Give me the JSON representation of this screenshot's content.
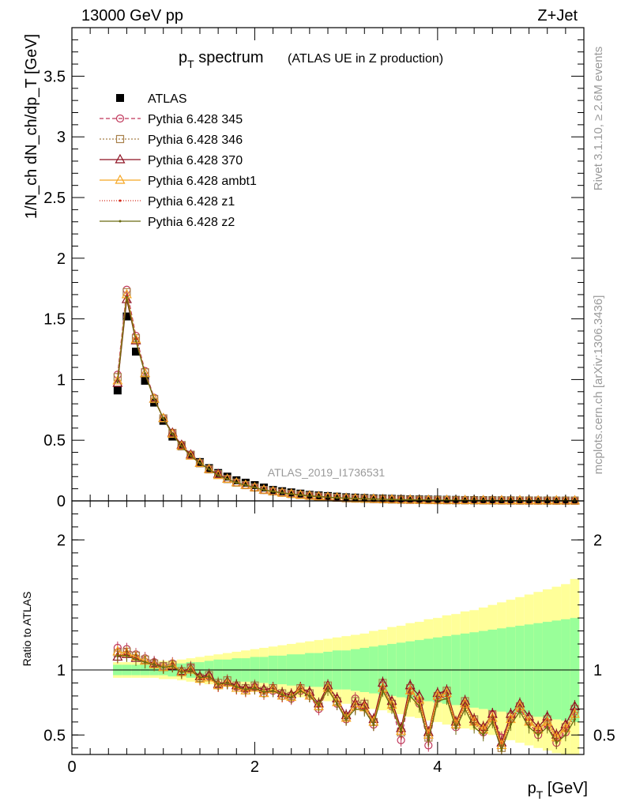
{
  "header": {
    "energy_label": "13000 GeV pp",
    "process_label": "Z+Jet"
  },
  "side_labels": {
    "rivet": "Rivet 3.1.10, ≥ 2.6M events",
    "mcplots": "mcplots.cern.ch [arXiv:1306.3436]"
  },
  "watermark": "ATLAS_2019_I1736531",
  "chart_data": [
    {
      "type": "line",
      "title": "p_T spectrum",
      "title_parts": {
        "main": "p",
        "sub": "T",
        "rest": " spectrum",
        "suffix": "(ATLAS UE in Z production)"
      },
      "ylabel": "1/N_ch dN_ch/dp_T [GeV]",
      "ylim": [
        0,
        3.9
      ],
      "yticks": [
        "0",
        "0.5",
        "1",
        "1.5",
        "2",
        "2.5",
        "3",
        "3.5"
      ],
      "legend_position": "top-left",
      "x": [
        0.5,
        0.6,
        0.7,
        0.8,
        0.9,
        1.0,
        1.1,
        1.2,
        1.3,
        1.4,
        1.5,
        1.6,
        1.7,
        1.8,
        1.9,
        2.0,
        2.1,
        2.2,
        2.3,
        2.4,
        2.5,
        2.6,
        2.7,
        2.8,
        2.9,
        3.0,
        3.1,
        3.2,
        3.3,
        3.4,
        3.5,
        3.6,
        3.7,
        3.8,
        3.9,
        4.0,
        4.1,
        4.2,
        4.3,
        4.4,
        4.5,
        4.6,
        4.7,
        4.8,
        4.9,
        5.0,
        5.1,
        5.2,
        5.3,
        5.4,
        5.5
      ],
      "series": [
        {
          "name": "ATLAS",
          "color": "#000000",
          "marker": "square",
          "values": [
            0.91,
            1.52,
            1.23,
            0.99,
            0.81,
            0.66,
            0.53,
            0.45,
            0.38,
            0.32,
            0.27,
            0.23,
            0.2,
            0.17,
            0.15,
            0.13,
            0.11,
            0.09,
            0.08,
            0.07,
            0.06,
            0.05,
            0.045,
            0.04,
            0.035,
            0.03,
            0.027,
            0.024,
            0.021,
            0.019,
            0.017,
            0.015,
            0.013,
            0.012,
            0.011,
            0.01,
            0.009,
            0.008,
            0.007,
            0.0065,
            0.006,
            0.0055,
            0.005,
            0.0045,
            0.004,
            0.0037,
            0.0034,
            0.0031,
            0.0028,
            0.0026,
            0.0024
          ]
        },
        {
          "name": "Pythia 6.428 345",
          "color": "#c0365a",
          "marker": "circle",
          "dash": "5,3",
          "values": [
            1.04,
            1.74,
            1.36,
            1.07,
            0.85,
            0.68,
            0.56,
            0.46,
            0.38,
            0.31,
            0.26,
            0.22,
            0.18,
            0.15,
            0.13,
            0.11,
            0.09,
            0.078,
            0.067,
            0.057,
            0.049,
            0.042,
            0.036,
            0.031,
            0.026,
            0.022,
            0.019,
            0.017,
            0.015,
            0.013,
            0.011,
            0.0095,
            0.0085,
            0.0075,
            0.0065,
            0.0058,
            0.0052,
            0.0046,
            0.0041,
            0.0037,
            0.0033,
            0.003,
            0.0027,
            0.0024,
            0.0022,
            0.002,
            0.0018,
            0.0016,
            0.0015,
            0.0013,
            0.0012
          ]
        },
        {
          "name": "Pythia 6.428 346",
          "color": "#a8804a",
          "marker": "square-open",
          "dash": "2,2",
          "values": [
            1.02,
            1.72,
            1.34,
            1.06,
            0.84,
            0.68,
            0.56,
            0.46,
            0.38,
            0.31,
            0.26,
            0.22,
            0.18,
            0.15,
            0.13,
            0.11,
            0.09,
            0.078,
            0.067,
            0.057,
            0.049,
            0.042,
            0.036,
            0.031,
            0.026,
            0.022,
            0.019,
            0.017,
            0.015,
            0.013,
            0.011,
            0.0095,
            0.0085,
            0.0075,
            0.0065,
            0.0058,
            0.0052,
            0.0046,
            0.0041,
            0.0037,
            0.0033,
            0.003,
            0.0027,
            0.0024,
            0.0022,
            0.002,
            0.0018,
            0.0016,
            0.0015,
            0.0013,
            0.0012
          ]
        },
        {
          "name": "Pythia 6.428 370",
          "color": "#8e1021",
          "marker": "triangle-open",
          "dash": "",
          "values": [
            0.97,
            1.66,
            1.32,
            1.05,
            0.84,
            0.68,
            0.56,
            0.46,
            0.38,
            0.31,
            0.26,
            0.22,
            0.18,
            0.15,
            0.13,
            0.11,
            0.09,
            0.078,
            0.067,
            0.057,
            0.049,
            0.042,
            0.036,
            0.031,
            0.026,
            0.022,
            0.019,
            0.017,
            0.015,
            0.013,
            0.011,
            0.0095,
            0.0085,
            0.0075,
            0.0065,
            0.0058,
            0.0052,
            0.0046,
            0.0041,
            0.0037,
            0.0033,
            0.003,
            0.0027,
            0.0024,
            0.0022,
            0.002,
            0.0018,
            0.0016,
            0.0015,
            0.0013,
            0.0012
          ]
        },
        {
          "name": "Pythia 6.428 ambt1",
          "color": "#f5a623",
          "marker": "triangle-open",
          "dash": "",
          "values": [
            0.99,
            1.7,
            1.33,
            1.05,
            0.84,
            0.68,
            0.55,
            0.45,
            0.37,
            0.31,
            0.26,
            0.21,
            0.18,
            0.15,
            0.13,
            0.11,
            0.09,
            0.077,
            0.066,
            0.056,
            0.048,
            0.041,
            0.035,
            0.03,
            0.026,
            0.022,
            0.019,
            0.017,
            0.015,
            0.013,
            0.011,
            0.0095,
            0.0085,
            0.0075,
            0.0065,
            0.0058,
            0.0052,
            0.0046,
            0.0041,
            0.0037,
            0.0033,
            0.003,
            0.0027,
            0.0024,
            0.0022,
            0.002,
            0.0018,
            0.0016,
            0.0015,
            0.0013,
            0.0012
          ]
        },
        {
          "name": "Pythia 6.428 z1",
          "color": "#d42a1a",
          "marker": "dot",
          "dash": "1,2",
          "values": [
            0.98,
            1.69,
            1.33,
            1.05,
            0.84,
            0.68,
            0.55,
            0.45,
            0.37,
            0.31,
            0.26,
            0.21,
            0.18,
            0.15,
            0.13,
            0.11,
            0.09,
            0.077,
            0.066,
            0.056,
            0.048,
            0.041,
            0.035,
            0.03,
            0.026,
            0.022,
            0.019,
            0.017,
            0.015,
            0.013,
            0.011,
            0.0095,
            0.0085,
            0.0075,
            0.0065,
            0.0058,
            0.0052,
            0.0046,
            0.0041,
            0.0037,
            0.0033,
            0.003,
            0.0027,
            0.0024,
            0.0022,
            0.002,
            0.0018,
            0.0016,
            0.0015,
            0.0013,
            0.0012
          ]
        },
        {
          "name": "Pythia 6.428 z2",
          "color": "#6b6b10",
          "marker": "dot",
          "dash": "",
          "values": [
            0.98,
            1.68,
            1.32,
            1.05,
            0.84,
            0.68,
            0.55,
            0.45,
            0.37,
            0.31,
            0.26,
            0.21,
            0.18,
            0.15,
            0.13,
            0.11,
            0.09,
            0.077,
            0.066,
            0.056,
            0.048,
            0.041,
            0.035,
            0.03,
            0.026,
            0.022,
            0.019,
            0.017,
            0.015,
            0.013,
            0.011,
            0.0095,
            0.0085,
            0.0075,
            0.0065,
            0.0058,
            0.0052,
            0.0046,
            0.0041,
            0.0037,
            0.0033,
            0.003,
            0.0027,
            0.0024,
            0.0022,
            0.002,
            0.0018,
            0.0016,
            0.0015,
            0.0013,
            0.0012
          ]
        }
      ]
    },
    {
      "type": "line",
      "ylabel": "Ratio to ATLAS",
      "xlabel": "p_T [GeV]",
      "xlabel_parts": {
        "main": "p",
        "sub": "T",
        "rest": " [GeV]"
      },
      "xlim": [
        0,
        5.6
      ],
      "ylim": [
        0.35,
        2.3
      ],
      "xticks": [
        "0",
        "2",
        "4"
      ],
      "yticks": [
        "0.5",
        "1",
        "2"
      ],
      "x": [
        0.5,
        0.6,
        0.7,
        0.8,
        0.9,
        1.0,
        1.1,
        1.2,
        1.3,
        1.4,
        1.5,
        1.6,
        1.7,
        1.8,
        1.9,
        2.0,
        2.1,
        2.2,
        2.3,
        2.4,
        2.5,
        2.6,
        2.7,
        2.8,
        2.9,
        3.0,
        3.1,
        3.2,
        3.3,
        3.4,
        3.5,
        3.6,
        3.7,
        3.8,
        3.9,
        4.0,
        4.1,
        4.2,
        4.3,
        4.4,
        4.5,
        4.6,
        4.7,
        4.8,
        4.9,
        5.0,
        5.1,
        5.2,
        5.3,
        5.4,
        5.5
      ],
      "bands": {
        "stat_color": "#99ff99",
        "total_color": "#ffff99",
        "stat_half_width": [
          0.04,
          0.04,
          0.04,
          0.04,
          0.04,
          0.04,
          0.05,
          0.05,
          0.06,
          0.06,
          0.07,
          0.08,
          0.08,
          0.09,
          0.09,
          0.1,
          0.1,
          0.11,
          0.11,
          0.12,
          0.12,
          0.13,
          0.13,
          0.14,
          0.15,
          0.15,
          0.16,
          0.17,
          0.18,
          0.19,
          0.2,
          0.21,
          0.22,
          0.23,
          0.24,
          0.25,
          0.26,
          0.27,
          0.28,
          0.29,
          0.3,
          0.31,
          0.32,
          0.33,
          0.34,
          0.35,
          0.36,
          0.37,
          0.38,
          0.39,
          0.4
        ],
        "total_half_width": [
          0.06,
          0.06,
          0.06,
          0.06,
          0.06,
          0.07,
          0.07,
          0.08,
          0.09,
          0.1,
          0.11,
          0.12,
          0.13,
          0.14,
          0.15,
          0.16,
          0.17,
          0.18,
          0.19,
          0.2,
          0.21,
          0.22,
          0.23,
          0.24,
          0.25,
          0.26,
          0.27,
          0.28,
          0.3,
          0.31,
          0.33,
          0.34,
          0.36,
          0.37,
          0.39,
          0.4,
          0.42,
          0.43,
          0.45,
          0.46,
          0.48,
          0.5,
          0.52,
          0.54,
          0.56,
          0.58,
          0.6,
          0.62,
          0.64,
          0.66,
          0.7
        ]
      },
      "series": [
        {
          "name": "Pythia 6.428 345",
          "values": [
            1.17,
            1.16,
            1.12,
            1.09,
            1.06,
            1.03,
            1.05,
            0.98,
            1.02,
            0.93,
            0.95,
            0.88,
            0.9,
            0.87,
            0.85,
            0.87,
            0.82,
            0.84,
            0.8,
            0.78,
            0.84,
            0.8,
            0.7,
            0.86,
            0.74,
            0.62,
            0.78,
            0.72,
            0.58,
            0.88,
            0.72,
            0.46,
            0.84,
            0.74,
            0.42,
            0.78,
            0.8,
            0.56,
            0.74,
            0.6,
            0.52,
            0.66,
            0.48,
            0.62,
            0.7,
            0.6,
            0.5,
            0.58,
            0.44,
            0.52,
            0.68
          ]
        },
        {
          "name": "Pythia 6.428 346",
          "values": [
            1.13,
            1.14,
            1.11,
            1.08,
            1.05,
            1.03,
            1.04,
            0.99,
            1.02,
            0.94,
            0.96,
            0.9,
            0.92,
            0.88,
            0.86,
            0.88,
            0.84,
            0.86,
            0.82,
            0.8,
            0.86,
            0.82,
            0.72,
            0.88,
            0.76,
            0.64,
            0.76,
            0.74,
            0.6,
            0.9,
            0.74,
            0.52,
            0.86,
            0.76,
            0.48,
            0.8,
            0.84,
            0.58,
            0.76,
            0.62,
            0.54,
            0.66,
            0.4,
            0.64,
            0.72,
            0.62,
            0.54,
            0.62,
            0.48,
            0.56,
            0.7
          ]
        },
        {
          "name": "Pythia 6.428 370",
          "values": [
            1.1,
            1.12,
            1.09,
            1.07,
            1.05,
            1.02,
            1.03,
            0.99,
            1.01,
            0.95,
            0.96,
            0.89,
            0.91,
            0.88,
            0.86,
            0.87,
            0.85,
            0.86,
            0.82,
            0.81,
            0.86,
            0.83,
            0.74,
            0.88,
            0.78,
            0.65,
            0.74,
            0.73,
            0.62,
            0.9,
            0.76,
            0.55,
            0.88,
            0.8,
            0.52,
            0.82,
            0.84,
            0.6,
            0.76,
            0.62,
            0.56,
            0.66,
            0.44,
            0.66,
            0.74,
            0.64,
            0.56,
            0.64,
            0.5,
            0.58,
            0.72
          ]
        },
        {
          "name": "Pythia 6.428 ambt1",
          "values": [
            1.14,
            1.13,
            1.1,
            1.07,
            1.04,
            1.02,
            1.04,
            0.98,
            1.0,
            0.93,
            0.94,
            0.88,
            0.9,
            0.86,
            0.84,
            0.86,
            0.82,
            0.85,
            0.8,
            0.79,
            0.85,
            0.8,
            0.72,
            0.86,
            0.75,
            0.63,
            0.72,
            0.71,
            0.6,
            0.86,
            0.73,
            0.53,
            0.84,
            0.77,
            0.5,
            0.8,
            0.82,
            0.58,
            0.74,
            0.6,
            0.54,
            0.63,
            0.42,
            0.62,
            0.72,
            0.6,
            0.54,
            0.6,
            0.48,
            0.55,
            0.66
          ]
        },
        {
          "name": "Pythia 6.428 z1",
          "values": [
            1.12,
            1.12,
            1.09,
            1.06,
            1.04,
            1.02,
            1.03,
            0.98,
            1.0,
            0.93,
            0.94,
            0.88,
            0.9,
            0.86,
            0.84,
            0.86,
            0.82,
            0.84,
            0.8,
            0.79,
            0.84,
            0.8,
            0.72,
            0.85,
            0.74,
            0.62,
            0.71,
            0.7,
            0.58,
            0.85,
            0.72,
            0.52,
            0.82,
            0.75,
            0.48,
            0.78,
            0.8,
            0.56,
            0.72,
            0.58,
            0.52,
            0.62,
            0.4,
            0.6,
            0.7,
            0.58,
            0.52,
            0.58,
            0.46,
            0.53,
            0.64
          ]
        },
        {
          "name": "Pythia 6.428 z2",
          "values": [
            1.11,
            1.11,
            1.08,
            1.06,
            1.04,
            1.02,
            1.03,
            0.98,
            1.0,
            0.94,
            0.95,
            0.89,
            0.9,
            0.87,
            0.85,
            0.86,
            0.83,
            0.84,
            0.81,
            0.79,
            0.84,
            0.8,
            0.73,
            0.85,
            0.74,
            0.62,
            0.7,
            0.69,
            0.58,
            0.84,
            0.71,
            0.53,
            0.8,
            0.72,
            0.46,
            0.76,
            0.78,
            0.55,
            0.7,
            0.56,
            0.5,
            0.6,
            0.38,
            0.58,
            0.68,
            0.56,
            0.5,
            0.56,
            0.44,
            0.5,
            0.62
          ]
        }
      ]
    }
  ]
}
